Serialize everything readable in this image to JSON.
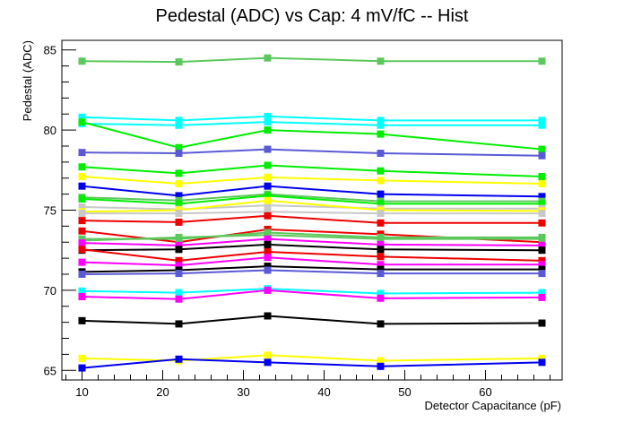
{
  "chart_data": {
    "type": "line",
    "title": "Pedestal (ADC) vs Cap: 4 mV/fC -- Hist",
    "xlabel": "Detector Capacitance (pF)",
    "ylabel": "Pedestal (ADC)",
    "xlim": [
      7.5,
      69.5
    ],
    "ylim": [
      64.4,
      85.6
    ],
    "x_ticks": [
      10,
      20,
      30,
      40,
      50,
      60
    ],
    "y_ticks": [
      65,
      70,
      75,
      80,
      85
    ],
    "grid": false,
    "x": [
      10,
      22,
      33,
      47,
      67
    ],
    "series": [
      {
        "color": "#5bc85b",
        "values": [
          84.3,
          84.25,
          84.5,
          84.3,
          84.3
        ]
      },
      {
        "color": "#00ffff",
        "values": [
          80.8,
          80.6,
          80.85,
          80.6,
          80.6
        ]
      },
      {
        "color": "#00ffff",
        "values": [
          80.4,
          80.3,
          80.5,
          80.3,
          80.3
        ]
      },
      {
        "color": "#00ee00",
        "values": [
          80.5,
          78.9,
          80.0,
          79.75,
          78.8
        ]
      },
      {
        "color": "#5a5ad6",
        "values": [
          78.6,
          78.55,
          78.8,
          78.55,
          78.4
        ]
      },
      {
        "color": "#00ee00",
        "values": [
          77.7,
          77.3,
          77.8,
          77.45,
          77.1
        ]
      },
      {
        "color": "#ffff00",
        "values": [
          77.1,
          76.65,
          77.05,
          76.85,
          76.65
        ]
      },
      {
        "color": "#0000ee",
        "values": [
          76.5,
          75.9,
          76.5,
          76.0,
          75.85
        ]
      },
      {
        "color": "#5bc85b",
        "values": [
          75.8,
          75.6,
          76.0,
          75.55,
          75.55
        ]
      },
      {
        "color": "#00ee00",
        "values": [
          75.7,
          75.4,
          75.9,
          75.4,
          75.4
        ]
      },
      {
        "color": "#c8c8c8",
        "values": [
          75.2,
          75.05,
          75.3,
          75.1,
          75.1
        ]
      },
      {
        "color": "#ffff00",
        "values": [
          74.9,
          75.0,
          75.6,
          75.0,
          74.95
        ]
      },
      {
        "color": "#c8c8c8",
        "values": [
          74.8,
          74.8,
          74.9,
          74.8,
          74.8
        ]
      },
      {
        "color": "#ee0000",
        "values": [
          74.35,
          74.25,
          74.65,
          74.2,
          74.2
        ]
      },
      {
        "color": "#ee0000",
        "values": [
          73.7,
          73.0,
          73.8,
          73.5,
          73.0
        ]
      },
      {
        "color": "#5bc85b",
        "values": [
          73.2,
          73.2,
          73.6,
          73.3,
          73.3
        ]
      },
      {
        "color": "#5bc85b",
        "values": [
          73.1,
          73.3,
          73.45,
          73.2,
          73.2
        ]
      },
      {
        "color": "#ff00ff",
        "values": [
          72.95,
          72.8,
          73.2,
          72.85,
          72.8
        ]
      },
      {
        "color": "#000000",
        "values": [
          72.5,
          72.55,
          72.85,
          72.55,
          72.5
        ]
      },
      {
        "color": "#ee0000",
        "values": [
          72.55,
          71.85,
          72.4,
          72.1,
          71.85
        ]
      },
      {
        "color": "#ff00ff",
        "values": [
          71.75,
          71.55,
          72.05,
          71.6,
          71.6
        ]
      },
      {
        "color": "#000000",
        "values": [
          71.15,
          71.25,
          71.5,
          71.3,
          71.3
        ]
      },
      {
        "color": "#5a5ad6",
        "values": [
          71.0,
          71.05,
          71.25,
          71.05,
          71.05
        ]
      },
      {
        "color": "#00ffff",
        "values": [
          69.95,
          69.85,
          70.1,
          69.8,
          69.85
        ]
      },
      {
        "color": "#ff00ff",
        "values": [
          69.6,
          69.45,
          70.0,
          69.5,
          69.55
        ]
      },
      {
        "color": "#000000",
        "values": [
          68.1,
          67.9,
          68.4,
          67.9,
          67.95
        ]
      },
      {
        "color": "#ffff00",
        "values": [
          65.75,
          65.6,
          65.95,
          65.6,
          65.75
        ]
      },
      {
        "color": "#0000ee",
        "values": [
          65.15,
          65.7,
          65.5,
          65.25,
          65.5
        ]
      }
    ]
  }
}
